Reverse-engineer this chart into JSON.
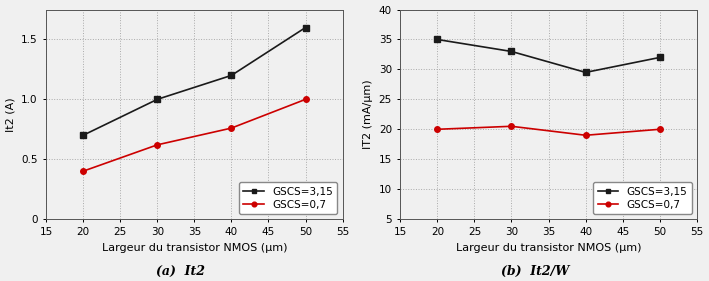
{
  "x": [
    20,
    30,
    40,
    50
  ],
  "plot1": {
    "black_y": [
      0.7,
      1.0,
      1.2,
      1.6
    ],
    "red_y": [
      0.4,
      0.62,
      0.76,
      1.0
    ],
    "ylabel": "It2 (A)",
    "xlabel": "Largeur du transistor NMOS (µm)",
    "xlim": [
      15,
      54
    ],
    "ylim": [
      0,
      1.75
    ],
    "yticks": [
      0,
      0.5,
      1.0,
      1.5
    ],
    "caption": "(a)  It2"
  },
  "plot2": {
    "black_y": [
      35.0,
      33.0,
      29.5,
      32.0
    ],
    "red_y": [
      20.0,
      20.5,
      19.0,
      20.0
    ],
    "ylabel": "IT2 (mA/µm)",
    "xlabel": "Largeur du transistor NMOS (µm)",
    "xlim": [
      15,
      54
    ],
    "ylim": [
      5,
      40
    ],
    "yticks": [
      5,
      10,
      15,
      20,
      25,
      30,
      35,
      40
    ],
    "caption": "(b)  It2/W"
  },
  "legend_black": "GSCS=3,15",
  "legend_red": "GSCS=0,7",
  "color_black": "#1a1a1a",
  "color_red": "#cc0000",
  "grid_color": "#aaaaaa",
  "marker_black": "s",
  "marker_red": "o",
  "marker_size": 4,
  "marker_size_legend": 3,
  "line_width": 1.2,
  "bg_color": "#f0f0f0",
  "xticks": [
    15,
    20,
    25,
    30,
    35,
    40,
    45,
    50,
    55
  ]
}
